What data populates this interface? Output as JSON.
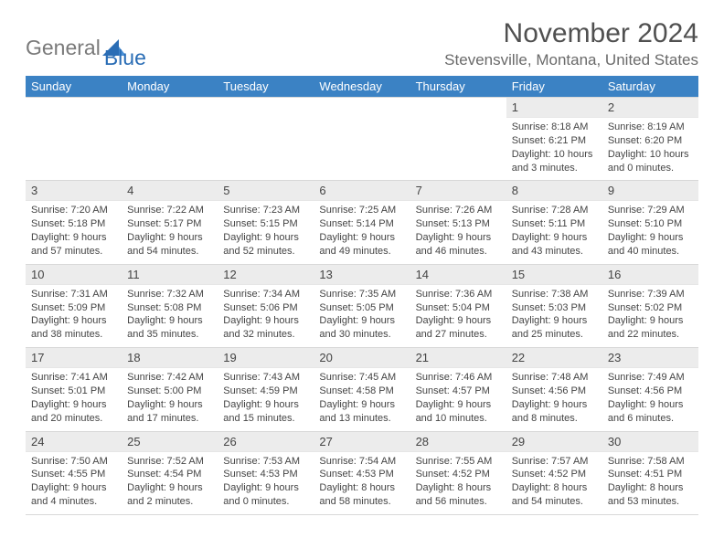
{
  "logo": {
    "word1": "General",
    "word2": "Blue",
    "triangle_color": "#2a6db5"
  },
  "title": "November 2024",
  "location": "Stevensville, Montana, United States",
  "header_bg": "#3b82c4",
  "days_of_week": [
    "Sunday",
    "Monday",
    "Tuesday",
    "Wednesday",
    "Thursday",
    "Friday",
    "Saturday"
  ],
  "weeks": [
    [
      null,
      null,
      null,
      null,
      null,
      {
        "n": "1",
        "sunrise": "Sunrise: 8:18 AM",
        "sunset": "Sunset: 6:21 PM",
        "daylight": "Daylight: 10 hours and 3 minutes."
      },
      {
        "n": "2",
        "sunrise": "Sunrise: 8:19 AM",
        "sunset": "Sunset: 6:20 PM",
        "daylight": "Daylight: 10 hours and 0 minutes."
      }
    ],
    [
      {
        "n": "3",
        "sunrise": "Sunrise: 7:20 AM",
        "sunset": "Sunset: 5:18 PM",
        "daylight": "Daylight: 9 hours and 57 minutes."
      },
      {
        "n": "4",
        "sunrise": "Sunrise: 7:22 AM",
        "sunset": "Sunset: 5:17 PM",
        "daylight": "Daylight: 9 hours and 54 minutes."
      },
      {
        "n": "5",
        "sunrise": "Sunrise: 7:23 AM",
        "sunset": "Sunset: 5:15 PM",
        "daylight": "Daylight: 9 hours and 52 minutes."
      },
      {
        "n": "6",
        "sunrise": "Sunrise: 7:25 AM",
        "sunset": "Sunset: 5:14 PM",
        "daylight": "Daylight: 9 hours and 49 minutes."
      },
      {
        "n": "7",
        "sunrise": "Sunrise: 7:26 AM",
        "sunset": "Sunset: 5:13 PM",
        "daylight": "Daylight: 9 hours and 46 minutes."
      },
      {
        "n": "8",
        "sunrise": "Sunrise: 7:28 AM",
        "sunset": "Sunset: 5:11 PM",
        "daylight": "Daylight: 9 hours and 43 minutes."
      },
      {
        "n": "9",
        "sunrise": "Sunrise: 7:29 AM",
        "sunset": "Sunset: 5:10 PM",
        "daylight": "Daylight: 9 hours and 40 minutes."
      }
    ],
    [
      {
        "n": "10",
        "sunrise": "Sunrise: 7:31 AM",
        "sunset": "Sunset: 5:09 PM",
        "daylight": "Daylight: 9 hours and 38 minutes."
      },
      {
        "n": "11",
        "sunrise": "Sunrise: 7:32 AM",
        "sunset": "Sunset: 5:08 PM",
        "daylight": "Daylight: 9 hours and 35 minutes."
      },
      {
        "n": "12",
        "sunrise": "Sunrise: 7:34 AM",
        "sunset": "Sunset: 5:06 PM",
        "daylight": "Daylight: 9 hours and 32 minutes."
      },
      {
        "n": "13",
        "sunrise": "Sunrise: 7:35 AM",
        "sunset": "Sunset: 5:05 PM",
        "daylight": "Daylight: 9 hours and 30 minutes."
      },
      {
        "n": "14",
        "sunrise": "Sunrise: 7:36 AM",
        "sunset": "Sunset: 5:04 PM",
        "daylight": "Daylight: 9 hours and 27 minutes."
      },
      {
        "n": "15",
        "sunrise": "Sunrise: 7:38 AM",
        "sunset": "Sunset: 5:03 PM",
        "daylight": "Daylight: 9 hours and 25 minutes."
      },
      {
        "n": "16",
        "sunrise": "Sunrise: 7:39 AM",
        "sunset": "Sunset: 5:02 PM",
        "daylight": "Daylight: 9 hours and 22 minutes."
      }
    ],
    [
      {
        "n": "17",
        "sunrise": "Sunrise: 7:41 AM",
        "sunset": "Sunset: 5:01 PM",
        "daylight": "Daylight: 9 hours and 20 minutes."
      },
      {
        "n": "18",
        "sunrise": "Sunrise: 7:42 AM",
        "sunset": "Sunset: 5:00 PM",
        "daylight": "Daylight: 9 hours and 17 minutes."
      },
      {
        "n": "19",
        "sunrise": "Sunrise: 7:43 AM",
        "sunset": "Sunset: 4:59 PM",
        "daylight": "Daylight: 9 hours and 15 minutes."
      },
      {
        "n": "20",
        "sunrise": "Sunrise: 7:45 AM",
        "sunset": "Sunset: 4:58 PM",
        "daylight": "Daylight: 9 hours and 13 minutes."
      },
      {
        "n": "21",
        "sunrise": "Sunrise: 7:46 AM",
        "sunset": "Sunset: 4:57 PM",
        "daylight": "Daylight: 9 hours and 10 minutes."
      },
      {
        "n": "22",
        "sunrise": "Sunrise: 7:48 AM",
        "sunset": "Sunset: 4:56 PM",
        "daylight": "Daylight: 9 hours and 8 minutes."
      },
      {
        "n": "23",
        "sunrise": "Sunrise: 7:49 AM",
        "sunset": "Sunset: 4:56 PM",
        "daylight": "Daylight: 9 hours and 6 minutes."
      }
    ],
    [
      {
        "n": "24",
        "sunrise": "Sunrise: 7:50 AM",
        "sunset": "Sunset: 4:55 PM",
        "daylight": "Daylight: 9 hours and 4 minutes."
      },
      {
        "n": "25",
        "sunrise": "Sunrise: 7:52 AM",
        "sunset": "Sunset: 4:54 PM",
        "daylight": "Daylight: 9 hours and 2 minutes."
      },
      {
        "n": "26",
        "sunrise": "Sunrise: 7:53 AM",
        "sunset": "Sunset: 4:53 PM",
        "daylight": "Daylight: 9 hours and 0 minutes."
      },
      {
        "n": "27",
        "sunrise": "Sunrise: 7:54 AM",
        "sunset": "Sunset: 4:53 PM",
        "daylight": "Daylight: 8 hours and 58 minutes."
      },
      {
        "n": "28",
        "sunrise": "Sunrise: 7:55 AM",
        "sunset": "Sunset: 4:52 PM",
        "daylight": "Daylight: 8 hours and 56 minutes."
      },
      {
        "n": "29",
        "sunrise": "Sunrise: 7:57 AM",
        "sunset": "Sunset: 4:52 PM",
        "daylight": "Daylight: 8 hours and 54 minutes."
      },
      {
        "n": "30",
        "sunrise": "Sunrise: 7:58 AM",
        "sunset": "Sunset: 4:51 PM",
        "daylight": "Daylight: 8 hours and 53 minutes."
      }
    ]
  ]
}
